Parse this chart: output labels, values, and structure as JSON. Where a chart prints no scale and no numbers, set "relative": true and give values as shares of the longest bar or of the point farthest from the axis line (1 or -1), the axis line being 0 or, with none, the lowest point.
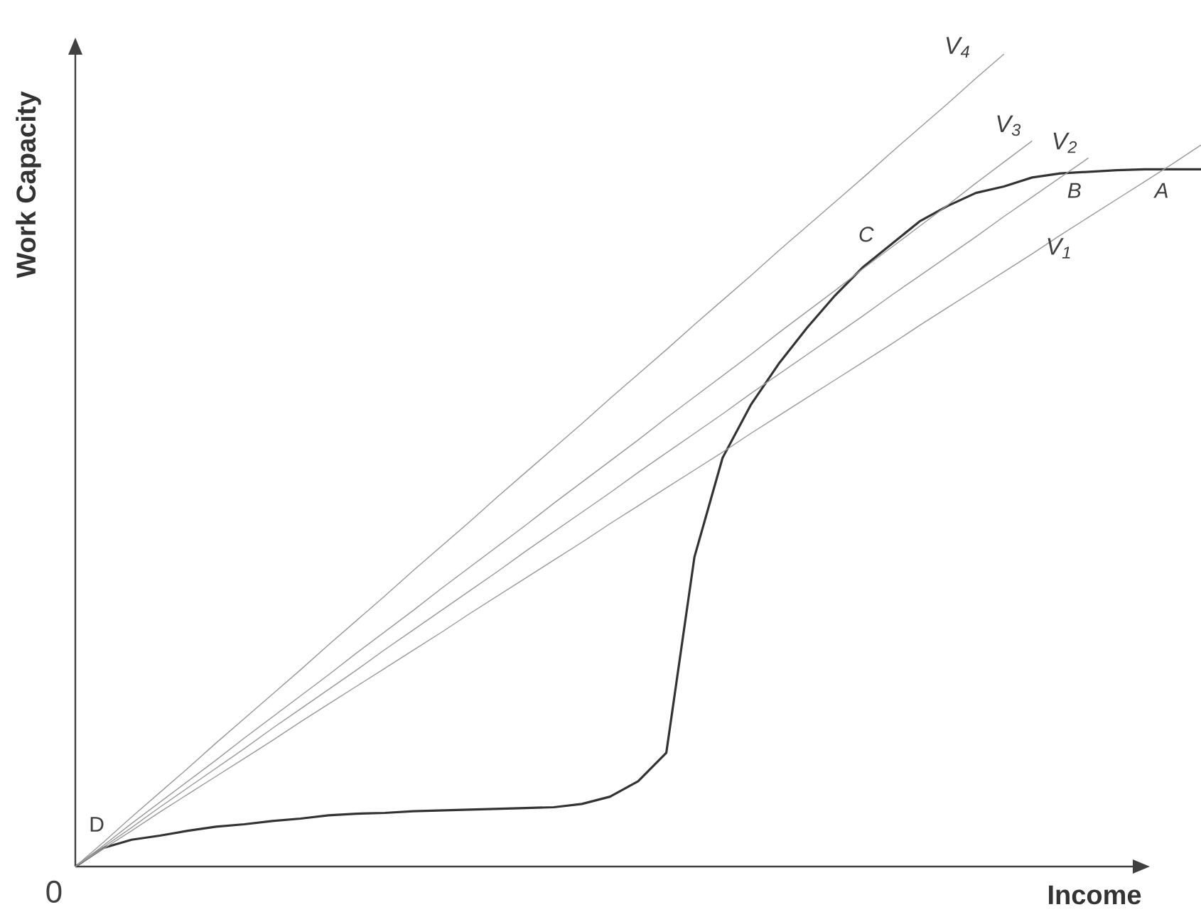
{
  "chart_data": {
    "type": "line",
    "relative": true,
    "xlabel": "Income",
    "ylabel": "Work Capacity",
    "marker": "none",
    "line_style": "solid",
    "categories": [
      null,
      null,
      null,
      null,
      null,
      null,
      null,
      null,
      null,
      null,
      null,
      null,
      null,
      null,
      null,
      null,
      null,
      null,
      null,
      null,
      null,
      null,
      null,
      null,
      null,
      null,
      null,
      null,
      null,
      null,
      null,
      null,
      null,
      null,
      null,
      null,
      null,
      null,
      null,
      null,
      null
    ],
    "series": [
      {
        "color": "#333333",
        "values": [
          0,
          0.023,
          0.033,
          0.038,
          0.044,
          0.049,
          0.052,
          0.056,
          0.059,
          0.063,
          0.065,
          0.066,
          0.068,
          0.069,
          0.07,
          0.071,
          0.072,
          0.073,
          0.077,
          0.086,
          0.105,
          0.14,
          0.381,
          0.503,
          0.568,
          0.619,
          0.663,
          0.703,
          0.738,
          0.766,
          0.794,
          0.813,
          0.829,
          0.837,
          0.848,
          0.853,
          0.855,
          0.857,
          0.858,
          0.858,
          0.858
        ]
      },
      {
        "name": "V$_{1}$",
        "color": "#999999",
        "values": [
          0,
          0.022,
          0.044,
          0.067,
          0.089,
          0.111,
          0.133,
          0.155,
          0.178,
          0.2,
          0.222,
          0.244,
          0.266,
          0.288,
          0.311,
          0.333,
          0.355,
          0.377,
          0.399,
          0.422,
          0.444,
          0.466,
          0.488,
          0.51,
          0.533,
          0.555,
          0.577,
          0.599,
          0.621,
          0.643,
          0.666,
          0.688,
          0.71,
          0.732,
          0.754,
          0.777,
          0.799,
          0.821,
          0.843,
          0.865,
          0.888
        ]
      },
      {
        "name": "V$_{2}$",
        "color": "#999999",
        "values": [
          0,
          0.024,
          0.048,
          0.073,
          0.097,
          0.121,
          0.145,
          0.17,
          0.194,
          0.218,
          0.242,
          0.267,
          0.291,
          0.315,
          0.339,
          0.363,
          0.388,
          0.412,
          0.436,
          0.46,
          0.485,
          0.509,
          0.533,
          0.557,
          0.582,
          0.606,
          0.63,
          0.654,
          0.678,
          0.703,
          0.727,
          0.751,
          0.775,
          0.8,
          0.824,
          0.848,
          0.872,
          null,
          null,
          null,
          null
        ]
      },
      {
        "name": "V$_{3}$",
        "color": "#999999",
        "values": [
          0,
          0.026,
          0.053,
          0.079,
          0.105,
          0.131,
          0.158,
          0.184,
          0.21,
          0.236,
          0.263,
          0.289,
          0.315,
          0.342,
          0.368,
          0.394,
          0.42,
          0.447,
          0.473,
          0.499,
          0.525,
          0.552,
          0.578,
          0.604,
          0.63,
          0.657,
          0.683,
          0.709,
          0.736,
          0.762,
          0.788,
          0.814,
          0.841,
          0.867,
          0.893,
          null,
          null,
          null,
          null,
          null,
          null
        ]
      },
      {
        "name": "V$_{4}$",
        "color": "#999999",
        "values": [
          0,
          0.03,
          0.061,
          0.091,
          0.121,
          0.152,
          0.182,
          0.212,
          0.242,
          0.273,
          0.303,
          0.333,
          0.364,
          0.394,
          0.424,
          0.455,
          0.485,
          0.515,
          0.545,
          0.576,
          0.606,
          0.636,
          0.667,
          0.697,
          0.727,
          0.758,
          0.788,
          0.818,
          0.848,
          0.879,
          0.909,
          0.939,
          0.97,
          1,
          null,
          null,
          null,
          null,
          null,
          null,
          null
        ]
      }
    ],
    "annotations": [
      "D",
      "C",
      "B",
      "A",
      "0"
    ]
  }
}
